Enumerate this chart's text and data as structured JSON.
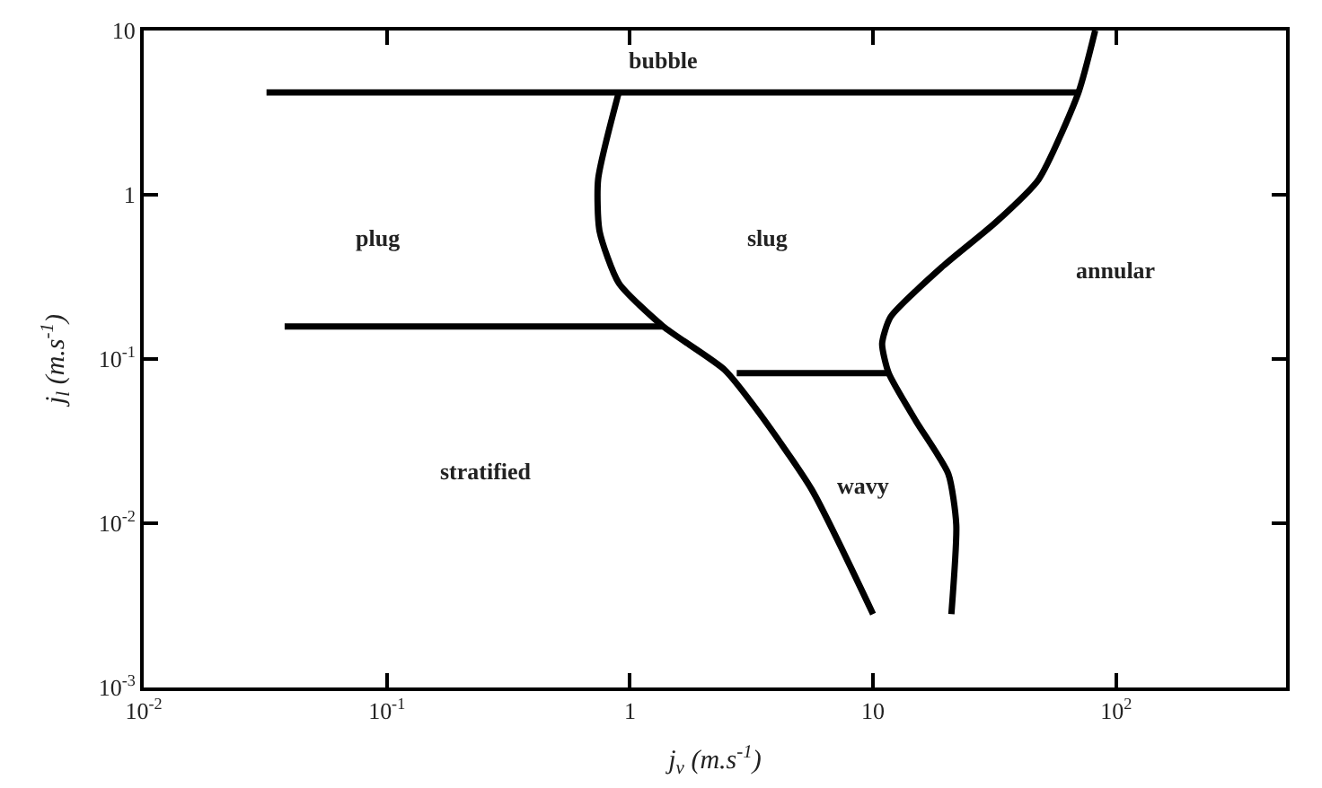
{
  "chart_data": {
    "type": "line",
    "xlabel": "j$_{v}$ (m.s$^{-1}$)",
    "ylabel": "j$_{l}$ (m.s$^{-1}$)",
    "log": "xy",
    "marker": "none",
    "line_style": "solid",
    "xlim": [
      0.01,
      500
    ],
    "ylim": [
      0.001,
      10
    ],
    "xticks": [
      {
        "value": 0.01,
        "label": "10$^{-2}$"
      },
      {
        "value": 0.1,
        "label": "10$^{-1}$"
      },
      1,
      10,
      {
        "value": 100,
        "label": "10$^{2}$"
      }
    ],
    "yticks": [
      {
        "value": 0.001,
        "label": "10$^{-3}$"
      },
      {
        "value": 0.01,
        "label": "10$^{-2}$"
      },
      {
        "value": 0.1,
        "label": "10$^{-1}$"
      },
      1,
      10
    ],
    "series": [
      {
        "color": "#000000",
        "x": [
          0.032,
          70
        ],
        "values": [
          4.2,
          4.2
        ]
      },
      {
        "color": "#000000",
        "x": [
          0.038,
          1.37
        ],
        "values": [
          0.158,
          0.158
        ]
      },
      {
        "color": "#000000",
        "x": [
          2.75,
          11.6
        ],
        "values": [
          0.082,
          0.082
        ]
      },
      {
        "color": "#000000",
        "x": [
          0.9,
          0.74,
          0.75,
          0.9,
          1.37,
          2.45,
          3.4,
          5.6,
          10
        ],
        "values": [
          4.2,
          1.24,
          0.6,
          0.29,
          0.158,
          0.086,
          0.047,
          0.016,
          0.0028
        ]
      },
      {
        "color": "#000000",
        "x": [
          82,
          70,
          48,
          32,
          19.5,
          11.8,
          10.9,
          11.6,
          15,
          20.4,
          22,
          21
        ],
        "values": [
          10,
          4.2,
          1.24,
          0.68,
          0.37,
          0.18,
          0.124,
          0.082,
          0.042,
          0.02,
          0.0098,
          0.0028
        ]
      }
    ],
    "annotations": [
      "bubble",
      "plug",
      "slug",
      "annular",
      "stratified",
      "wavy"
    ]
  }
}
